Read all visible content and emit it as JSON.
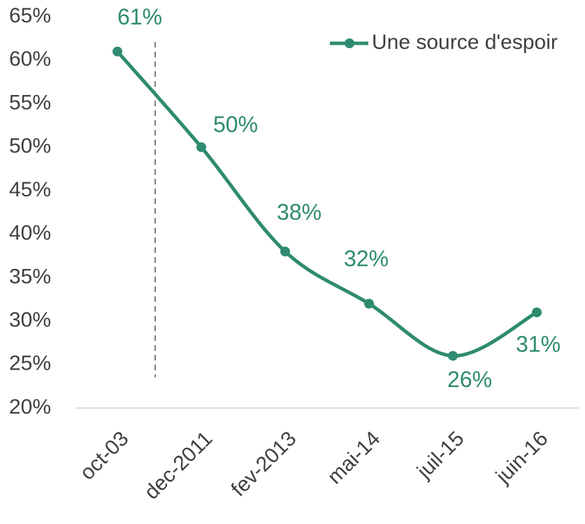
{
  "chart_data": {
    "type": "line",
    "categories": [
      "oct-03",
      "dec-2011",
      "fev-2013",
      "mai-14",
      "juil-15",
      "juin-16"
    ],
    "series": [
      {
        "name": "Une source d'espoir",
        "color": "#2e8b70",
        "values": [
          61,
          50,
          38,
          32,
          26,
          31
        ],
        "value_labels": [
          "61%",
          "50%",
          "38%",
          "32%",
          "26%",
          "31%"
        ]
      }
    ],
    "ylim": [
      20,
      65
    ],
    "yticks": [
      {
        "value": 20,
        "label": "20%"
      },
      {
        "value": 25,
        "label": "25%"
      },
      {
        "value": 30,
        "label": "30%"
      },
      {
        "value": 35,
        "label": "35%"
      },
      {
        "value": 40,
        "label": "40%"
      },
      {
        "value": 45,
        "label": "45%"
      },
      {
        "value": 50,
        "label": "50%"
      },
      {
        "value": 55,
        "label": "55%"
      },
      {
        "value": 60,
        "label": "60%"
      },
      {
        "value": 65,
        "label": "65%"
      }
    ],
    "grid": false,
    "legend": "top-right",
    "smooth": true
  }
}
